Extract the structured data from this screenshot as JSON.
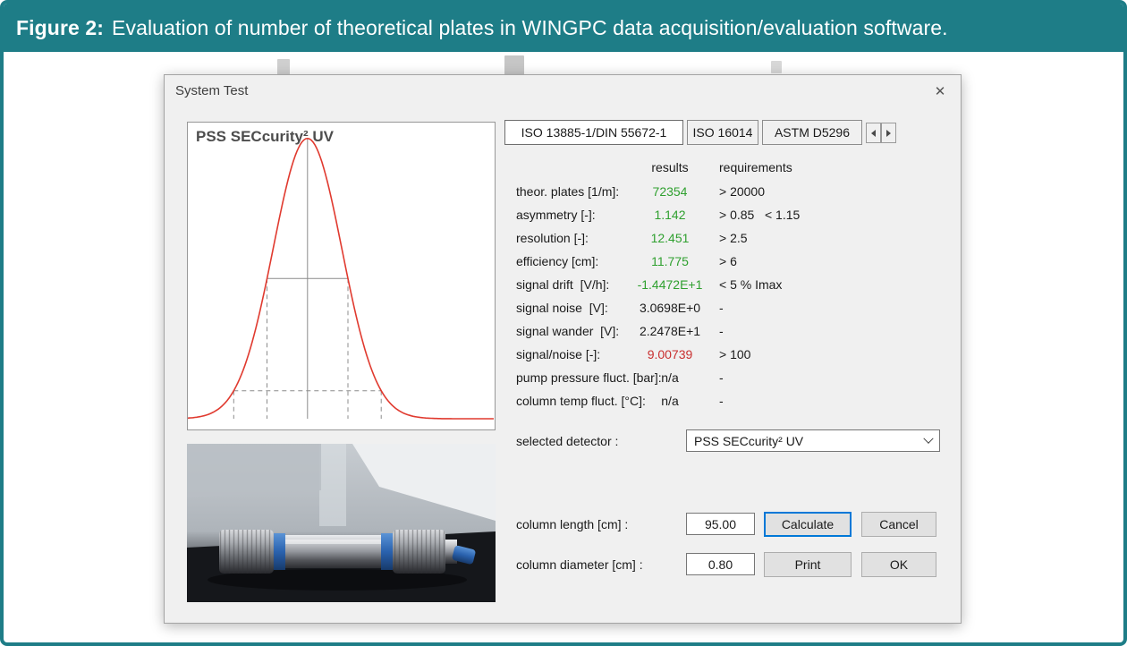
{
  "figure_caption": {
    "label": "Figure 2:",
    "text": "Evaluation of number of theoretical plates in WINGPC data acquisition/evaluation software."
  },
  "window": {
    "title": "System Test"
  },
  "icons": {
    "close": "✕",
    "tab_scroll_left": "left-triangle",
    "tab_scroll_right": "right-triangle",
    "combo_chevron": "chevron-down"
  },
  "tabs": [
    {
      "label": "ISO 13885-1/DIN 55672-1",
      "active": true
    },
    {
      "label": "ISO 16014",
      "active": false
    },
    {
      "label": "ASTM D5296",
      "active": false
    }
  ],
  "results_table": {
    "col_results": "results",
    "col_requirements": "requirements",
    "rows": [
      {
        "label": "theor. plates [1/m]:",
        "value": "72354",
        "value_color": "#2fa02f",
        "requirement": "> 20000"
      },
      {
        "label": "asymmetry [-]:",
        "value": "1.142",
        "value_color": "#2fa02f",
        "requirement": "> 0.85   < 1.15"
      },
      {
        "label": "resolution [-]:",
        "value": "12.451",
        "value_color": "#2fa02f",
        "requirement": "> 2.5"
      },
      {
        "label": "efficiency [cm]:",
        "value": "11.775",
        "value_color": "#2fa02f",
        "requirement": "> 6"
      },
      {
        "label": "signal drift  [V/h]:",
        "value": "-1.4472E+1",
        "value_color": "#2fa02f",
        "requirement": "< 5 % Imax"
      },
      {
        "label": "signal noise  [V]:",
        "value": "3.0698E+0",
        "value_color": "#1a1a1a",
        "requirement": "-"
      },
      {
        "label": "signal wander  [V]:",
        "value": "2.2478E+1",
        "value_color": "#1a1a1a",
        "requirement": "-"
      },
      {
        "label": "signal/noise [-]:",
        "value": "9.00739",
        "value_color": "#c93030",
        "requirement": "> 100"
      },
      {
        "label": "pump pressure fluct. [bar]:",
        "value": "n/a",
        "value_color": "#1a1a1a",
        "requirement": "-"
      },
      {
        "label": "column temp fluct. [°C]:",
        "value": "n/a",
        "value_color": "#1a1a1a",
        "requirement": "-"
      }
    ]
  },
  "detector": {
    "label": "selected detector :",
    "value": "PSS SECcurity² UV"
  },
  "inputs": {
    "column_length_label": "column length [cm] :",
    "column_length_value": "95.00",
    "column_diameter_label": "column diameter [cm] :",
    "column_diameter_value": "0.80"
  },
  "buttons": {
    "calculate": "Calculate",
    "cancel": "Cancel",
    "print": "Print",
    "ok": "OK"
  },
  "colors": {
    "accent_teal": "#1e7d87",
    "pass_green": "#2fa02f",
    "fail_red": "#c93030",
    "default_button_focus": "#0078d7"
  },
  "chart_data": {
    "type": "line",
    "title": "PSS SECcurity² UV",
    "description": "Detector signal showing one Gaussian elution peak; solid vertical line marks peak apex, solid horizontal line marks peak width at half height, dashed lines mark peak width near baseline (10% height).",
    "xlabel": "",
    "ylabel": "",
    "axes_visible": false,
    "grid": false,
    "curve_color": "#e03a2f",
    "marker_color": "#8c8c8c",
    "peak": {
      "center_frac": 0.39,
      "sigma_frac": 0.112,
      "height_frac": 0.97
    },
    "markers": {
      "center_line": true,
      "levels": [
        0.5,
        0.1
      ]
    }
  }
}
